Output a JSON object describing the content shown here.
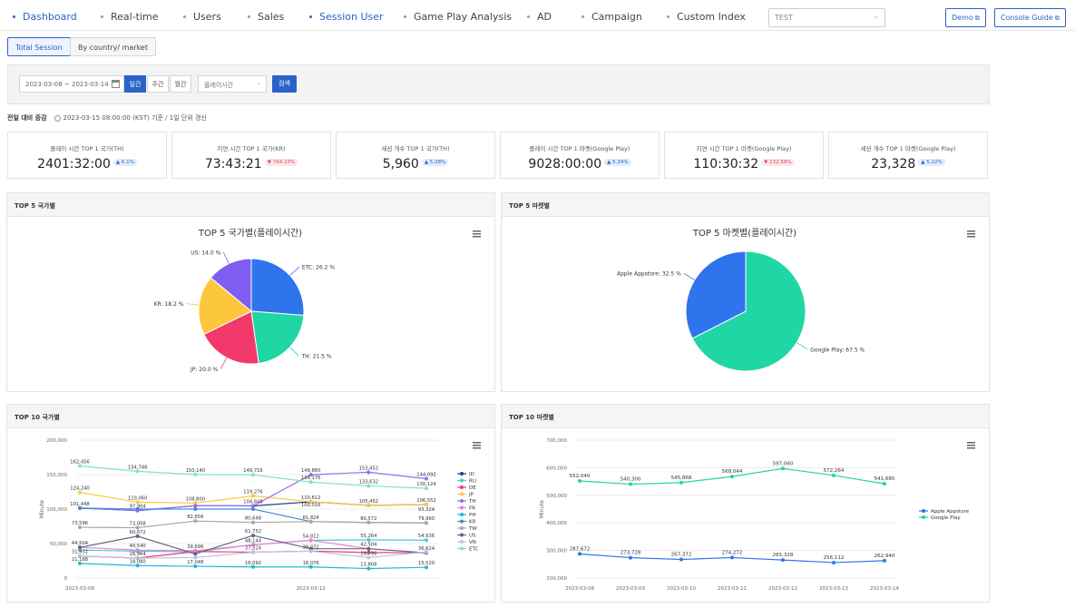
{
  "nav": {
    "items": [
      {
        "label": "Dashboard",
        "active": true
      },
      {
        "label": "Real-time",
        "active": false
      },
      {
        "label": "Users",
        "active": false
      },
      {
        "label": "Sales",
        "active": false
      },
      {
        "label": "Session User",
        "active": true
      },
      {
        "label": "Game Play Analysis",
        "active": false
      },
      {
        "label": "AD",
        "active": false
      },
      {
        "label": "Campaign",
        "active": false
      },
      {
        "label": "Custom Index",
        "active": false
      }
    ],
    "project_select": "TEST",
    "demo_button": "Demo",
    "guide_button": "Console Guide"
  },
  "subtabs": [
    "Total Session",
    "By country/ market"
  ],
  "filters": {
    "date_range": "2023-03-08 ~ 2023-03-14",
    "periods": [
      "일간",
      "주간",
      "월간"
    ],
    "metric": "플레이시간",
    "search_button": "검색"
  },
  "updated": {
    "label": "전일 대비 증감",
    "text": "2023-03-15 08:00:00 (KST) 기준 / 1일 단위 갱신"
  },
  "kpis": [
    {
      "title": "플레이 시간 TOP 1 국가(TH)",
      "value": "2401:32:00",
      "badge": "▲ 6.1%",
      "badge_type": "up"
    },
    {
      "title": "지연 시간 TOP 1 국가(KR)",
      "value": "73:43:21",
      "badge": "▼ 794.23%",
      "badge_type": "red"
    },
    {
      "title": "세션 개수 TOP 1 국가(TH)",
      "value": "5,960",
      "badge": "▲ 5.28%",
      "badge_type": "up"
    },
    {
      "title": "플레이 시간 TOP 1 마켓(Google Play)",
      "value": "9028:00:00",
      "badge": "▲ 5.34%",
      "badge_type": "up"
    },
    {
      "title": "지연 시간 TOP 1 마켓(Google Play)",
      "value": "110:30:32",
      "badge": "▼ 132.58%",
      "badge_type": "red"
    },
    {
      "title": "세션 개수 TOP 1 마켓(Google Play)",
      "value": "23,328",
      "badge": "▲ 5.22%",
      "badge_type": "up"
    }
  ],
  "panels": {
    "top5_country": "TOP 5 국가별",
    "top5_market": "TOP 5 마켓별",
    "top10_country": "TOP 10 국가별",
    "top10_market": "TOP 10 마켓별"
  },
  "colors": {
    "accent": "#2b62c9",
    "ETC": "#2f74ec",
    "TH": "#20d6a4",
    "JP": "#f2386a",
    "KR": "#fcc73c",
    "US": "#7f5cf2",
    "Apple Appstore": "#2f74ec",
    "Google Play": "#20d6a4"
  },
  "chart_data": [
    {
      "type": "pie",
      "title": "TOP 5 국가별(플레이시간)",
      "slices": [
        {
          "label": "ETC",
          "value": 26.2
        },
        {
          "label": "TH",
          "value": 21.5
        },
        {
          "label": "JP",
          "value": 20.0
        },
        {
          "label": "KR",
          "value": 18.2
        },
        {
          "label": "US",
          "value": 14.0
        }
      ],
      "unit": "%"
    },
    {
      "type": "pie",
      "title": "TOP 5 마켓별(플레이시간)",
      "slices": [
        {
          "label": "Google Play",
          "value": 67.5
        },
        {
          "label": "Apple Appstore",
          "value": 32.5
        }
      ],
      "unit": "%"
    },
    {
      "type": "line",
      "title": "",
      "ylabel": "Minute",
      "ylim": [
        0,
        200000
      ],
      "yticks": [
        "0",
        "50,000",
        "100,000",
        "150,000",
        "200,000"
      ],
      "x": [
        "2023-03-08",
        "2023-03-09",
        "2023-03-10",
        "2023-03-11",
        "2023-03-12",
        "2023-03-13",
        "2023-03-14"
      ],
      "xtick_labels": [
        "2023-03-08",
        "",
        "",
        "",
        "2023-03-12",
        "",
        ""
      ],
      "legend": "right",
      "series": [
        {
          "name": "ID",
          "color": "#1f3c88",
          "values": [
            101448,
            97904,
            104848,
            104648,
            110612,
            105452,
            106552
          ]
        },
        {
          "name": "RU",
          "color": "#4ec9d6",
          "values": [
            40540,
            39000,
            38000,
            48144,
            54812,
            55264,
            54936
          ]
        },
        {
          "name": "DE",
          "color": "#f2386a",
          "values": [
            31932,
            28964,
            38500,
            37524,
            39072,
            37000,
            36624
          ]
        },
        {
          "name": "JP",
          "color": "#fcc73c",
          "values": [
            124240,
            110060,
            108800,
            119276,
            110612,
            105452,
            106552
          ]
        },
        {
          "name": "TH",
          "color": "#9b6bf2",
          "values": [
            101448,
            97904,
            104848,
            104648,
            149880,
            153452,
            144092
          ]
        },
        {
          "name": "FR",
          "color": "#f07cd2",
          "values": [
            44504,
            40540,
            39696,
            48144,
            54812,
            42504,
            36624
          ]
        },
        {
          "name": "PH",
          "color": "#21b7d9",
          "values": [
            21188,
            18080,
            17048,
            16092,
            16076,
            13808,
            15520
          ]
        },
        {
          "name": "KR",
          "color": "#3a8fd8",
          "values": [
            101448,
            100000,
            100000,
            100016,
            81824,
            80572,
            79960
          ]
        },
        {
          "name": "TW",
          "color": "#a8a8a8",
          "values": [
            73596,
            73008,
            82656,
            80648,
            81824,
            80572,
            79960
          ]
        },
        {
          "name": "US",
          "color": "#5a6b80",
          "values": [
            44504,
            60672,
            35000,
            61752,
            42504,
            42504,
            36624
          ]
        },
        {
          "name": "VN",
          "color": "#b7c2e8",
          "values": [
            31932,
            28964,
            29696,
            37524,
            39072,
            29796,
            38000
          ]
        },
        {
          "name": "ETC",
          "color": "#7fe3c7",
          "values": [
            162456,
            154748,
            150140,
            149716,
            139176,
            133632,
            130124
          ]
        }
      ],
      "data_labels": [
        "162,456",
        "154,748",
        "150,140",
        "149,716",
        "149,880",
        "153,452",
        "144,092",
        "139,176",
        "133,632",
        "130,124",
        "124,240",
        "110,060",
        "108,800",
        "119,276",
        "110,612",
        "105,452",
        "106,552",
        "101,448",
        "97,904",
        "104,848",
        "100,016",
        "93,324",
        "73,596",
        "73,008",
        "82,656",
        "80,648",
        "81,824",
        "80,572",
        "79,960",
        "60,672",
        "61,752",
        "55,264",
        "54,936",
        "44,504",
        "40,540",
        "48,144",
        "54,812",
        "42,504",
        "31,932",
        "28,964",
        "39,696",
        "37,524",
        "39,072",
        "36,624",
        "29,796",
        "21,188",
        "18,080",
        "17,048",
        "16,092",
        "16,076",
        "13,808",
        "15,520"
      ]
    },
    {
      "type": "line",
      "title": "",
      "ylabel": "Minute",
      "ylim": [
        200000,
        700000
      ],
      "yticks": [
        "200,000",
        "300,000",
        "400,000",
        "500,000",
        "600,000",
        "700,000"
      ],
      "x": [
        "2023-03-08",
        "2023-03-09",
        "2023-03-10",
        "2023-03-11",
        "2023-03-12",
        "2023-03-13",
        "2023-03-14"
      ],
      "legend": "right",
      "series": [
        {
          "name": "Apple Appstore",
          "color": "#2f74ec",
          "values": [
            287672,
            273728,
            267372,
            274272,
            265328,
            256112,
            262940
          ]
        },
        {
          "name": "Google Play",
          "color": "#20d6a4",
          "values": [
            552040,
            540300,
            545868,
            568044,
            597060,
            572264,
            541680
          ]
        }
      ]
    }
  ]
}
